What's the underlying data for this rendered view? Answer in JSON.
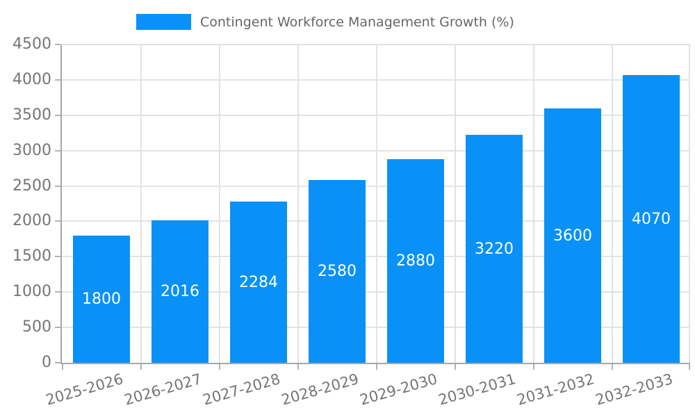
{
  "legend": {
    "label": "Contingent Workforce Management Growth (%)"
  },
  "colors": {
    "bar": "#0991f8",
    "bar_label": "#ffffff",
    "grid_line": "#e3e3e3",
    "axis_line": "#a6a6a6",
    "tick": "#b3b3b3",
    "axis_label": "#757575",
    "legend_text": "#666666",
    "background": "#ffffff"
  },
  "chart_data": {
    "type": "bar",
    "title": "Contingent Workforce Management Growth (%)",
    "categories": [
      "2025-2026",
      "2026-2027",
      "2027-2028",
      "2028-2029",
      "2029-2030",
      "2030-2031",
      "2031-2032",
      "2032-2033"
    ],
    "values": [
      1800,
      2016,
      2284,
      2580,
      2880,
      3220,
      3600,
      4070
    ],
    "xlabel": "",
    "ylabel": "",
    "ylim": [
      0,
      4500
    ],
    "ytick_step": 500,
    "grid": true,
    "grid_vertical": true,
    "legend_position": "top-center",
    "x_label_rotation_deg": -16,
    "value_labels": "inside-center"
  }
}
